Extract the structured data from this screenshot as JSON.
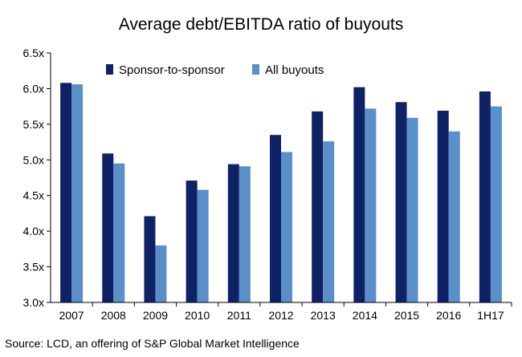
{
  "chart_data": {
    "type": "bar",
    "title": "Average debt/EBITDA ratio of buyouts",
    "xlabel": "",
    "ylabel": "",
    "categories": [
      "2007",
      "2008",
      "2009",
      "2010",
      "2011",
      "2012",
      "2013",
      "2014",
      "2015",
      "2016",
      "1H17"
    ],
    "series": [
      {
        "name": "Sponsor-to-sponsor",
        "color": "#0e2265",
        "values": [
          6.08,
          5.09,
          4.21,
          4.71,
          4.94,
          5.35,
          5.68,
          6.02,
          5.81,
          5.69,
          5.96
        ]
      },
      {
        "name": "All buyouts",
        "color": "#5b8fc9",
        "values": [
          6.06,
          4.95,
          3.8,
          4.58,
          4.91,
          5.11,
          5.26,
          5.72,
          5.59,
          5.4,
          5.75
        ]
      }
    ],
    "ylim": [
      3.0,
      6.5
    ],
    "yticks": [
      3.0,
      3.5,
      4.0,
      4.5,
      5.0,
      5.5,
      6.0,
      6.5
    ],
    "ytick_labels": [
      "3.0x",
      "3.5x",
      "4.0x",
      "4.5x",
      "5.0x",
      "5.5x",
      "6.0x",
      "6.5x"
    ],
    "grid": false,
    "legend_position": "top-left",
    "source": "Source: LCD, an offering of S&P Global Market Intelligence"
  }
}
